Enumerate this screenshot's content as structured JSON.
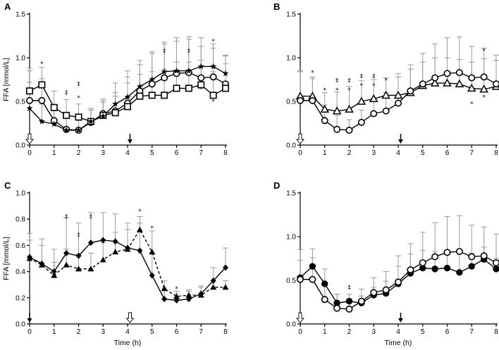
{
  "chart_data": [
    {
      "type": "line",
      "panel": "A",
      "ylabel": "FFA [mmol/L]",
      "xlabel": "",
      "ylim": [
        0,
        1.5
      ],
      "yticks": [
        "0.0",
        "0.5",
        "1.0",
        "1.5"
      ],
      "xlim": [
        0,
        8
      ],
      "xticks": [
        "0",
        "1",
        "2",
        "3",
        "4",
        "5",
        "6",
        "7",
        "8"
      ],
      "x": [
        0,
        0.5,
        1,
        1.5,
        2,
        2.5,
        3,
        3.5,
        4,
        4.5,
        5,
        5.5,
        6,
        6.5,
        7,
        7.5,
        8
      ],
      "series": [
        {
          "name": "circle",
          "marker": "circle",
          "line": "solid",
          "values": [
            0.51,
            0.51,
            0.28,
            0.18,
            0.17,
            0.26,
            0.36,
            0.39,
            0.48,
            0.62,
            0.7,
            0.77,
            0.82,
            0.83,
            0.77,
            0.78,
            0.7
          ],
          "errors": [
            0.34,
            0.25,
            0.18,
            0.16,
            0.12,
            0.14,
            0.17,
            0.21,
            0.3,
            0.3,
            0.35,
            0.39,
            0.41,
            0.41,
            0.36,
            0.33,
            0.33
          ]
        },
        {
          "name": "square",
          "marker": "square",
          "line": "solid",
          "values": [
            0.62,
            0.69,
            0.43,
            0.34,
            0.32,
            0.27,
            0.34,
            0.37,
            0.44,
            0.56,
            0.57,
            0.57,
            0.65,
            0.65,
            0.69,
            0.57,
            0.65
          ],
          "errors": [
            0.26,
            0.2,
            0.19,
            0.18,
            0.15,
            0.13,
            0.15,
            0.19,
            0.27,
            0.25,
            0.27,
            0.3,
            0.3,
            0.3,
            0.28,
            0.27,
            0.28
          ]
        },
        {
          "name": "star",
          "marker": "star",
          "line": "solid",
          "values": [
            0.42,
            0.27,
            0.24,
            0.17,
            0.17,
            0.27,
            0.33,
            0.47,
            0.55,
            0.67,
            0.75,
            0.84,
            0.85,
            0.85,
            0.9,
            0.9,
            0.82
          ],
          "errors": [
            0.3,
            0.2,
            0.18,
            0.15,
            0.14,
            0.15,
            0.18,
            0.24,
            0.3,
            0.3,
            0.32,
            0.34,
            0.34,
            0.36,
            0.33,
            0.26,
            0.2
          ]
        }
      ],
      "annotations": [
        {
          "x": 0.5,
          "y": 0.93,
          "label": "*"
        },
        {
          "x": 1.5,
          "y": 0.6,
          "label": "‡"
        },
        {
          "x": 2,
          "y": 0.7,
          "label": "‡"
        },
        {
          "x": 2,
          "y": 0.54,
          "label": "*"
        },
        {
          "x": 5.5,
          "y": 1.08,
          "label": "‡"
        },
        {
          "x": 6.5,
          "y": 1.08,
          "label": "‡"
        },
        {
          "x": 7.5,
          "y": 1.19,
          "label": "*"
        },
        {
          "x": 7,
          "y": 0.64,
          "label": "*"
        },
        {
          "x": 7.5,
          "y": 0.5,
          "label": "*"
        }
      ],
      "arrows": [
        {
          "x": 0,
          "style": "open"
        },
        {
          "x": 4.1,
          "style": "filled"
        }
      ]
    },
    {
      "type": "line",
      "panel": "B",
      "ylabel": "",
      "xlabel": "",
      "ylim": [
        0,
        1.5
      ],
      "yticks": [
        "0.0",
        "0.5",
        "1.0",
        "1.5"
      ],
      "xlim": [
        0,
        8
      ],
      "xticks": [
        "0",
        "1",
        "2",
        "3",
        "4",
        "5",
        "6",
        "7",
        "8"
      ],
      "x": [
        0,
        0.5,
        1,
        1.5,
        2,
        2.5,
        3,
        3.5,
        4,
        4.5,
        5,
        5.5,
        6,
        6.5,
        7,
        7.5,
        8
      ],
      "series": [
        {
          "name": "triangle",
          "marker": "triangle-open",
          "line": "solid",
          "values": [
            0.56,
            0.56,
            0.41,
            0.39,
            0.41,
            0.5,
            0.53,
            0.57,
            0.57,
            0.6,
            0.68,
            0.71,
            0.71,
            0.7,
            0.65,
            0.64,
            0.67
          ],
          "errors": [
            0.28,
            0.22,
            0.19,
            0.22,
            0.26,
            0.24,
            0.22,
            0.2,
            0.25,
            0.27,
            0.27,
            0.29,
            0.29,
            0.28,
            0.3,
            0.35,
            0.3
          ]
        },
        {
          "name": "circle",
          "marker": "circle",
          "line": "solid",
          "values": [
            0.51,
            0.51,
            0.28,
            0.18,
            0.17,
            0.26,
            0.36,
            0.39,
            0.48,
            0.62,
            0.7,
            0.77,
            0.82,
            0.83,
            0.77,
            0.78,
            0.7
          ],
          "errors": [
            0.34,
            0.25,
            0.18,
            0.16,
            0.12,
            0.14,
            0.17,
            0.21,
            0.3,
            0.3,
            0.35,
            0.39,
            0.41,
            0.41,
            0.36,
            0.33,
            0.33
          ]
        }
      ],
      "annotations": [
        {
          "x": 0.5,
          "y": 0.83,
          "label": "*"
        },
        {
          "x": 1,
          "y": 0.63,
          "label": "*"
        },
        {
          "x": 1.5,
          "y": 0.74,
          "label": "‡"
        },
        {
          "x": 1.5,
          "y": 0.63,
          "label": "*"
        },
        {
          "x": 2,
          "y": 0.74,
          "label": "‡"
        },
        {
          "x": 2,
          "y": 0.63,
          "label": "*"
        },
        {
          "x": 2.5,
          "y": 0.79,
          "label": "‡"
        },
        {
          "x": 2.5,
          "y": 0.68,
          "label": "*"
        },
        {
          "x": 3,
          "y": 0.79,
          "label": "‡"
        },
        {
          "x": 3,
          "y": 0.68,
          "label": "*"
        },
        {
          "x": 3.5,
          "y": 0.74,
          "label": "*"
        },
        {
          "x": 7,
          "y": 0.47,
          "label": "*"
        },
        {
          "x": 7.5,
          "y": 1.08,
          "label": "*"
        },
        {
          "x": 7.5,
          "y": 0.55,
          "label": "*"
        }
      ],
      "arrows": [
        {
          "x": 0,
          "style": "open"
        },
        {
          "x": 4.1,
          "style": "filled"
        }
      ]
    },
    {
      "type": "line",
      "panel": "C",
      "ylabel": "FFA [mmol/L]",
      "xlabel": "Time (h)",
      "ylim": [
        0,
        1.0
      ],
      "yticks": [
        "0.0",
        "0.2",
        "0.4",
        "0.6",
        "0.8",
        "1.0"
      ],
      "xlim": [
        0,
        8
      ],
      "xticks": [
        "0",
        "1",
        "2",
        "3",
        "4",
        "5",
        "6",
        "7",
        "8"
      ],
      "x": [
        0,
        0.5,
        1,
        1.5,
        2,
        2.5,
        3,
        3.5,
        4,
        4.5,
        5,
        5.5,
        6,
        6.5,
        7,
        7.5,
        8
      ],
      "series": [
        {
          "name": "diamond",
          "marker": "diamond",
          "line": "solid",
          "values": [
            0.51,
            0.46,
            0.4,
            0.54,
            0.52,
            0.62,
            0.64,
            0.63,
            0.58,
            0.56,
            0.37,
            0.19,
            0.18,
            0.19,
            0.23,
            0.33,
            0.43
          ],
          "errors": [
            0.18,
            0.19,
            0.17,
            0.27,
            0.25,
            0.23,
            0.21,
            0.21,
            0.19,
            0.21,
            0.17,
            0.07,
            0.05,
            0.06,
            0.06,
            0.1,
            0.15
          ]
        },
        {
          "name": "triangle",
          "marker": "triangle-filled",
          "line": "dashed",
          "values": [
            0.5,
            0.45,
            0.37,
            0.45,
            0.42,
            0.42,
            0.49,
            0.55,
            0.57,
            0.72,
            0.55,
            0.27,
            0.21,
            0.22,
            0.22,
            0.28,
            0.28
          ],
          "errors": [
            0.14,
            0.15,
            0.1,
            0.12,
            0.11,
            0.12,
            0.13,
            0.15,
            0.15,
            0.1,
            0.16,
            0.06,
            0.04,
            0.04,
            0.06,
            0.05,
            0.05
          ]
        }
      ],
      "annotations": [
        {
          "x": 1.5,
          "y": 0.82,
          "label": "‡"
        },
        {
          "x": 2,
          "y": 0.68,
          "label": "‡"
        },
        {
          "x": 2.5,
          "y": 0.82,
          "label": "‡"
        },
        {
          "x": 4.5,
          "y": 0.86,
          "label": "*"
        },
        {
          "x": 5,
          "y": 0.73,
          "label": "*"
        },
        {
          "x": 6,
          "y": 0.27,
          "label": "*"
        }
      ],
      "arrows": [
        {
          "x": 0,
          "style": "filled"
        },
        {
          "x": 4.1,
          "style": "open"
        }
      ]
    },
    {
      "type": "line",
      "panel": "D",
      "ylabel": "",
      "xlabel": "Time (h)",
      "ylim": [
        0,
        1.5
      ],
      "yticks": [
        "0.0",
        "0.5",
        "1.0",
        "1.5"
      ],
      "xlim": [
        0,
        8
      ],
      "xticks": [
        "0",
        "1",
        "2",
        "3",
        "4",
        "5",
        "6",
        "7",
        "8"
      ],
      "x": [
        0,
        0.5,
        1,
        1.5,
        2,
        2.5,
        3,
        3.5,
        4,
        4.5,
        5,
        5.5,
        6,
        6.5,
        7,
        7.5,
        8
      ],
      "series": [
        {
          "name": "filled-circle",
          "marker": "circle-filled",
          "line": "solid",
          "values": [
            0.53,
            0.66,
            0.46,
            0.24,
            0.26,
            0.24,
            0.33,
            0.35,
            0.46,
            0.58,
            0.64,
            0.63,
            0.64,
            0.59,
            0.66,
            0.74,
            0.63
          ],
          "errors": [
            0.2,
            0.2,
            0.17,
            0.1,
            0.08,
            0.08,
            0.09,
            0.14,
            0.2,
            0.22,
            0.2,
            0.2,
            0.2,
            0.22,
            0.15,
            0.14,
            0.12
          ]
        },
        {
          "name": "open-circle",
          "marker": "circle",
          "line": "solid",
          "values": [
            0.51,
            0.51,
            0.28,
            0.18,
            0.17,
            0.26,
            0.36,
            0.39,
            0.48,
            0.62,
            0.7,
            0.77,
            0.82,
            0.83,
            0.77,
            0.78,
            0.7
          ],
          "errors": [
            0.34,
            0.25,
            0.18,
            0.16,
            0.12,
            0.14,
            0.17,
            0.21,
            0.3,
            0.3,
            0.35,
            0.39,
            0.41,
            0.41,
            0.36,
            0.33,
            0.33
          ]
        }
      ],
      "annotations": [
        {
          "x": 2,
          "y": 0.42,
          "label": "‡"
        }
      ],
      "arrows": [
        {
          "x": 0,
          "style": "open"
        },
        {
          "x": 4.1,
          "style": "filled"
        }
      ]
    }
  ]
}
